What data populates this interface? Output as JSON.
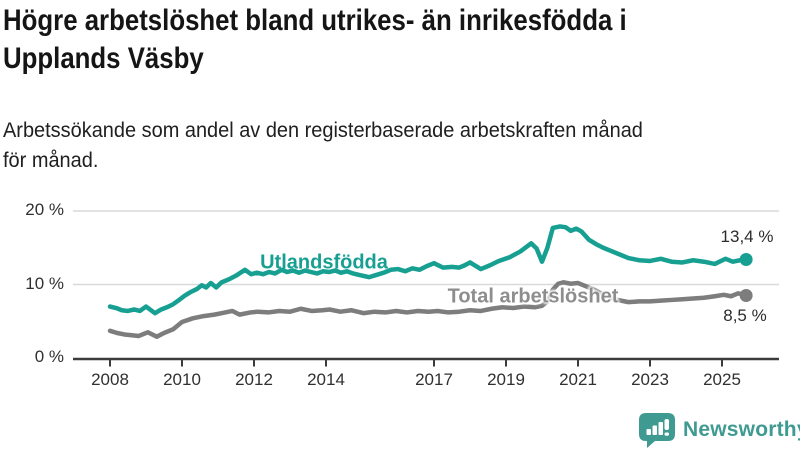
{
  "header": {
    "title": "Högre arbetslöshet bland utrikes- än inrikesfödda i\nUpplands Väsby",
    "subtitle": "Arbetssökande som andel av den registerbaserade arbetskraften månad\nför månad."
  },
  "footer": {
    "brand": "Newsworthy",
    "logo_icon": "bar-chart-speech-bubble-icon"
  },
  "colors": {
    "accent_teal": "#17a092",
    "line_gray": "#7d7d7d",
    "label_gray": "#8d8d8d",
    "axis": "#3c3c3c",
    "gridline": "#d9d9d9",
    "text_dark": "#2c2c2c",
    "logo_teal": "#3f9a91"
  },
  "chart_data": {
    "type": "line",
    "title": "Högre arbetslöshet bland utrikes- än inrikesfödda i Upplands Väsby",
    "subtitle": "Arbetssökande som andel av den registerbaserade arbetskraften månad för månad.",
    "xlabel": "",
    "ylabel": "",
    "ylim": [
      0,
      20
    ],
    "xlim": [
      2007,
      2026.5
    ],
    "grid": "horizontal",
    "legend_position": "inline-labels",
    "yticks": [
      {
        "value": 0,
        "label": "0 %"
      },
      {
        "value": 10,
        "label": "10 %"
      },
      {
        "value": 20,
        "label": "20 %"
      }
    ],
    "xticks": [
      {
        "value": 2008,
        "label": "2008"
      },
      {
        "value": 2010,
        "label": "2010"
      },
      {
        "value": 2012,
        "label": "2012"
      },
      {
        "value": 2014,
        "label": "2014"
      },
      {
        "value": 2017,
        "label": "2017"
      },
      {
        "value": 2019,
        "label": "2019"
      },
      {
        "value": 2021,
        "label": "2021"
      },
      {
        "value": 2023,
        "label": "2023"
      },
      {
        "value": 2025,
        "label": "2025"
      }
    ],
    "series": [
      {
        "name": "Utlandsfödda",
        "color": "#17a092",
        "end_label": "13,4 %",
        "last_value": 13.4,
        "points": [
          [
            2008.0,
            7.0
          ],
          [
            2008.17,
            6.8
          ],
          [
            2008.33,
            6.5
          ],
          [
            2008.5,
            6.4
          ],
          [
            2008.67,
            6.6
          ],
          [
            2008.83,
            6.4
          ],
          [
            2009.0,
            7.0
          ],
          [
            2009.25,
            6.1
          ],
          [
            2009.42,
            6.6
          ],
          [
            2009.58,
            6.9
          ],
          [
            2009.75,
            7.3
          ],
          [
            2009.92,
            7.9
          ],
          [
            2010.08,
            8.5
          ],
          [
            2010.25,
            9.0
          ],
          [
            2010.42,
            9.4
          ],
          [
            2010.55,
            9.9
          ],
          [
            2010.67,
            9.6
          ],
          [
            2010.8,
            10.2
          ],
          [
            2010.95,
            9.6
          ],
          [
            2011.1,
            10.3
          ],
          [
            2011.3,
            10.7
          ],
          [
            2011.5,
            11.2
          ],
          [
            2011.75,
            12.0
          ],
          [
            2011.92,
            11.4
          ],
          [
            2012.08,
            11.6
          ],
          [
            2012.25,
            11.4
          ],
          [
            2012.42,
            11.7
          ],
          [
            2012.58,
            11.5
          ],
          [
            2012.77,
            12.0
          ],
          [
            2012.92,
            11.7
          ],
          [
            2013.08,
            11.9
          ],
          [
            2013.25,
            11.6
          ],
          [
            2013.42,
            11.9
          ],
          [
            2013.58,
            11.7
          ],
          [
            2013.75,
            11.5
          ],
          [
            2013.92,
            11.8
          ],
          [
            2014.08,
            11.7
          ],
          [
            2014.25,
            11.9
          ],
          [
            2014.42,
            11.6
          ],
          [
            2014.58,
            11.8
          ],
          [
            2014.75,
            11.5
          ],
          [
            2014.92,
            11.3
          ],
          [
            2015.2,
            11.0
          ],
          [
            2015.4,
            11.3
          ],
          [
            2015.6,
            11.6
          ],
          [
            2015.8,
            12.0
          ],
          [
            2016.0,
            12.1
          ],
          [
            2016.2,
            11.8
          ],
          [
            2016.4,
            12.2
          ],
          [
            2016.6,
            12.0
          ],
          [
            2016.8,
            12.5
          ],
          [
            2017.0,
            12.9
          ],
          [
            2017.25,
            12.3
          ],
          [
            2017.5,
            12.4
          ],
          [
            2017.7,
            12.3
          ],
          [
            2017.85,
            12.6
          ],
          [
            2018.0,
            13.0
          ],
          [
            2018.3,
            12.1
          ],
          [
            2018.55,
            12.6
          ],
          [
            2018.8,
            13.2
          ],
          [
            2019.1,
            13.7
          ],
          [
            2019.4,
            14.5
          ],
          [
            2019.7,
            15.6
          ],
          [
            2019.85,
            14.9
          ],
          [
            2020.0,
            13.1
          ],
          [
            2020.15,
            15.0
          ],
          [
            2020.3,
            17.7
          ],
          [
            2020.5,
            17.9
          ],
          [
            2020.65,
            17.8
          ],
          [
            2020.8,
            17.3
          ],
          [
            2020.95,
            17.6
          ],
          [
            2021.1,
            17.2
          ],
          [
            2021.3,
            16.1
          ],
          [
            2021.5,
            15.5
          ],
          [
            2021.7,
            15.0
          ],
          [
            2021.9,
            14.6
          ],
          [
            2022.1,
            14.2
          ],
          [
            2022.4,
            13.6
          ],
          [
            2022.7,
            13.3
          ],
          [
            2023.0,
            13.2
          ],
          [
            2023.3,
            13.5
          ],
          [
            2023.6,
            13.1
          ],
          [
            2023.9,
            13.0
          ],
          [
            2024.2,
            13.3
          ],
          [
            2024.5,
            13.1
          ],
          [
            2024.8,
            12.8
          ],
          [
            2025.1,
            13.5
          ],
          [
            2025.3,
            13.1
          ],
          [
            2025.5,
            13.3
          ],
          [
            2025.67,
            13.4
          ]
        ]
      },
      {
        "name": "Total arbetslöshet",
        "color": "#7d7d7d",
        "end_label": "8,5 %",
        "last_value": 8.5,
        "points": [
          [
            2008.0,
            3.7
          ],
          [
            2008.2,
            3.4
          ],
          [
            2008.4,
            3.2
          ],
          [
            2008.6,
            3.1
          ],
          [
            2008.8,
            3.0
          ],
          [
            2009.05,
            3.5
          ],
          [
            2009.3,
            2.9
          ],
          [
            2009.5,
            3.4
          ],
          [
            2009.75,
            3.9
          ],
          [
            2010.0,
            4.9
          ],
          [
            2010.3,
            5.4
          ],
          [
            2010.6,
            5.7
          ],
          [
            2010.9,
            5.9
          ],
          [
            2011.1,
            6.1
          ],
          [
            2011.4,
            6.4
          ],
          [
            2011.6,
            5.9
          ],
          [
            2011.9,
            6.2
          ],
          [
            2012.1,
            6.3
          ],
          [
            2012.4,
            6.2
          ],
          [
            2012.7,
            6.4
          ],
          [
            2013.0,
            6.3
          ],
          [
            2013.3,
            6.7
          ],
          [
            2013.6,
            6.4
          ],
          [
            2013.9,
            6.5
          ],
          [
            2014.1,
            6.6
          ],
          [
            2014.4,
            6.3
          ],
          [
            2014.7,
            6.5
          ],
          [
            2015.05,
            6.1
          ],
          [
            2015.35,
            6.3
          ],
          [
            2015.65,
            6.2
          ],
          [
            2015.95,
            6.4
          ],
          [
            2016.25,
            6.2
          ],
          [
            2016.55,
            6.4
          ],
          [
            2016.85,
            6.3
          ],
          [
            2017.1,
            6.4
          ],
          [
            2017.4,
            6.2
          ],
          [
            2017.7,
            6.3
          ],
          [
            2018.0,
            6.5
          ],
          [
            2018.3,
            6.4
          ],
          [
            2018.6,
            6.7
          ],
          [
            2018.9,
            6.9
          ],
          [
            2019.2,
            6.8
          ],
          [
            2019.5,
            7.0
          ],
          [
            2019.8,
            6.9
          ],
          [
            2020.0,
            7.1
          ],
          [
            2020.15,
            7.7
          ],
          [
            2020.3,
            9.3
          ],
          [
            2020.45,
            10.1
          ],
          [
            2020.6,
            10.3
          ],
          [
            2020.8,
            10.1
          ],
          [
            2021.0,
            10.2
          ],
          [
            2021.2,
            9.8
          ],
          [
            2021.4,
            9.4
          ],
          [
            2021.6,
            8.9
          ],
          [
            2021.85,
            8.4
          ],
          [
            2022.1,
            7.9
          ],
          [
            2022.4,
            7.6
          ],
          [
            2022.7,
            7.7
          ],
          [
            2023.0,
            7.7
          ],
          [
            2023.3,
            7.8
          ],
          [
            2023.6,
            7.9
          ],
          [
            2023.9,
            8.0
          ],
          [
            2024.2,
            8.1
          ],
          [
            2024.5,
            8.2
          ],
          [
            2024.8,
            8.4
          ],
          [
            2025.05,
            8.6
          ],
          [
            2025.25,
            8.4
          ],
          [
            2025.45,
            8.8
          ],
          [
            2025.67,
            8.5
          ]
        ]
      }
    ]
  }
}
